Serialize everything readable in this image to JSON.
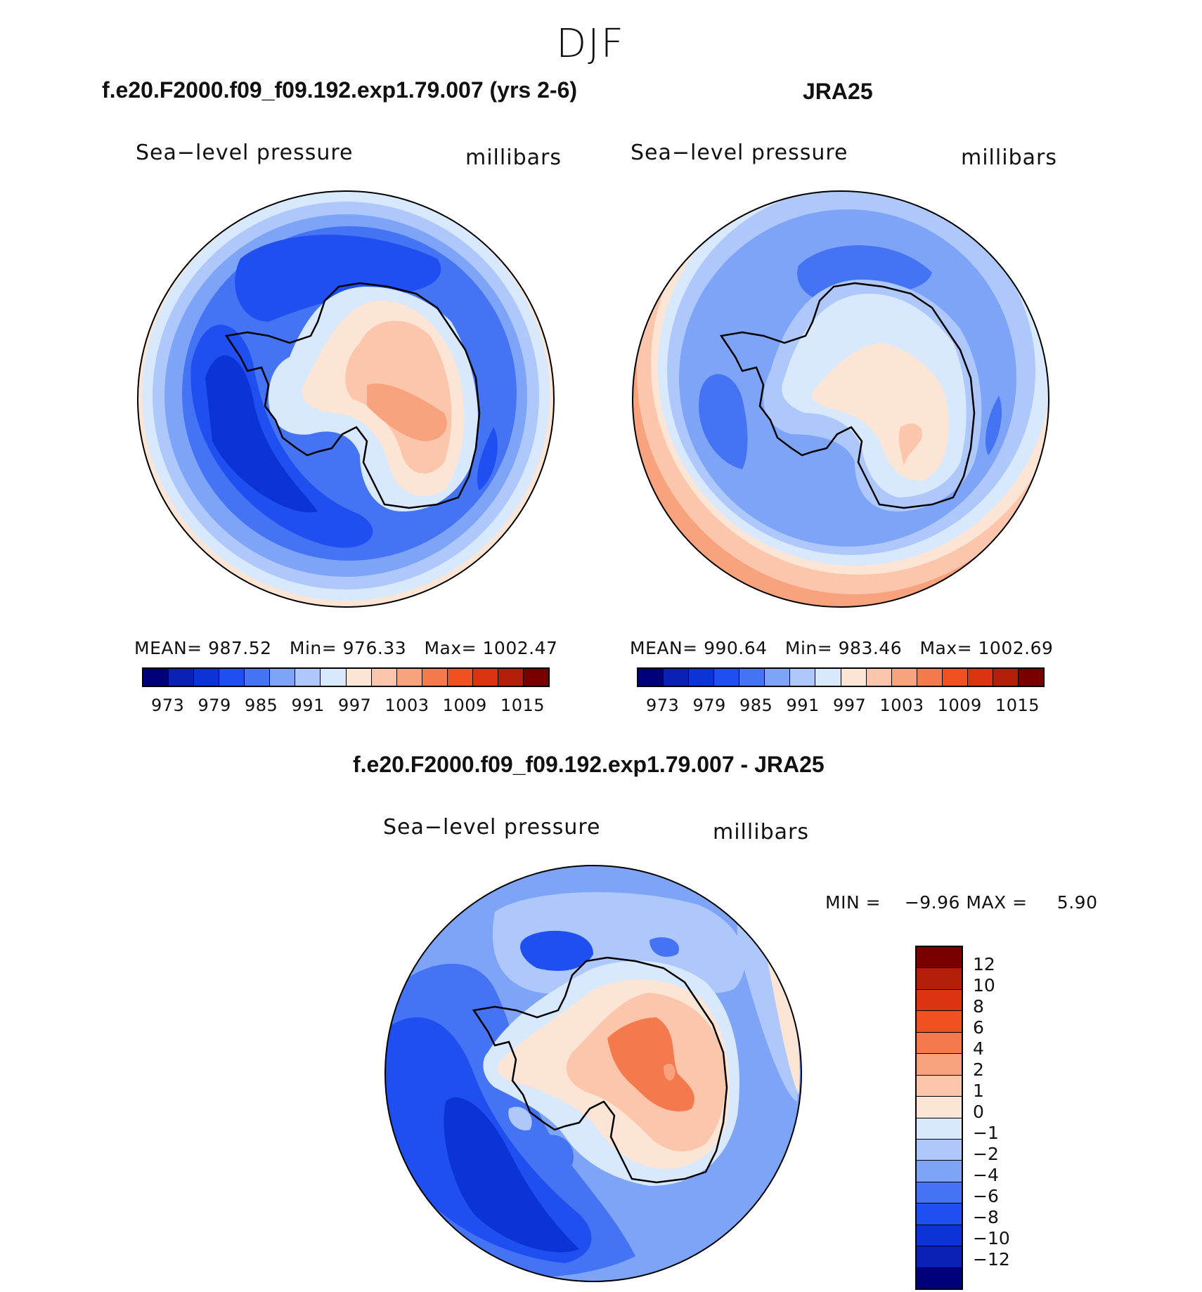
{
  "figure": {
    "season": "DJF",
    "colors": {
      "blue_0": "#00007a",
      "blue_1": "#0a1fb4",
      "blue_2": "#0b33d6",
      "blue_3": "#1f4ff0",
      "blue_4": "#4474f4",
      "blue_5": "#7ea4f8",
      "blue_6": "#aec8fb",
      "blue_7": "#d8e8fd",
      "red_0": "#fde5d6",
      "red_1": "#fbc6ac",
      "red_2": "#f9a27e",
      "red_3": "#f47a4e",
      "red_4": "#f04f1f",
      "red_5": "#dc3310",
      "red_6": "#b31f08",
      "red_7": "#7a0000"
    }
  },
  "panels": [
    {
      "title": "f.e20.F2000.f09_f09.192.exp1.79.007 (yrs 2-6)",
      "variable": "Sea−level pressure",
      "units": "millibars",
      "stats": "MEAN= 987.52   Min= 976.33   Max= 1002.47",
      "colorbar_ticks": [
        "973",
        "979",
        "985",
        "991",
        "997",
        "1003",
        "1009",
        "1015"
      ]
    },
    {
      "title": "JRA25",
      "variable": "Sea−level pressure",
      "units": "millibars",
      "stats": "MEAN= 990.64   Min= 983.46   Max= 1002.69",
      "colorbar_ticks": [
        "973",
        "979",
        "985",
        "991",
        "997",
        "1003",
        "1009",
        "1015"
      ]
    },
    {
      "title": "f.e20.F2000.f09_f09.192.exp1.79.007 - JRA25",
      "variable": "Sea−level pressure",
      "units": "millibars",
      "stats": "MIN =    −9.96 MAX =     5.90",
      "colorbar_ticks": [
        "12",
        "10",
        "8",
        "6",
        "4",
        "2",
        "1",
        "0",
        "−1",
        "−2",
        "−4",
        "−6",
        "−8",
        "−10",
        "−12"
      ]
    }
  ]
}
